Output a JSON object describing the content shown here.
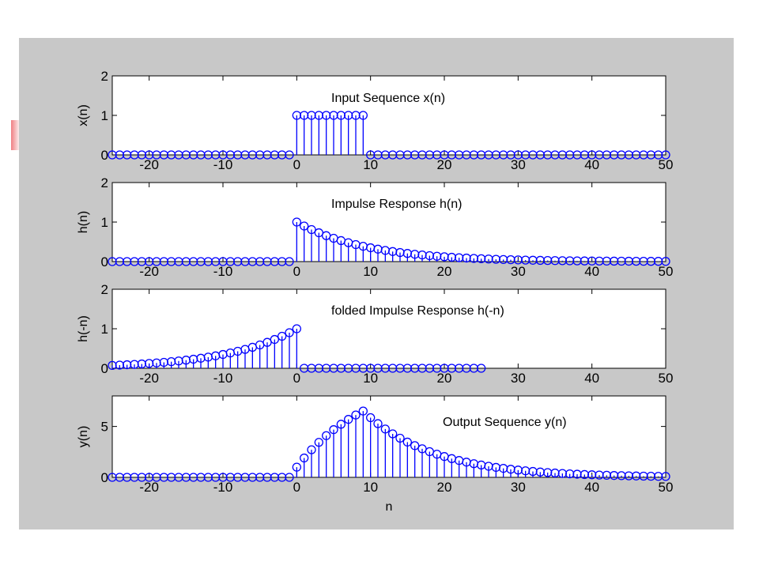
{
  "chart_data": [
    {
      "type": "stem",
      "title": "Input Sequence x(n)",
      "xlabel": "",
      "ylabel": "x(n)",
      "xlim": [
        -25,
        50
      ],
      "ylim": [
        0,
        2
      ],
      "xticks": [
        -20,
        -10,
        0,
        10,
        20,
        30,
        40,
        50
      ],
      "yticks": [
        0,
        1,
        2
      ],
      "x": [
        -25,
        -24,
        -23,
        -22,
        -21,
        -20,
        -19,
        -18,
        -17,
        -16,
        -15,
        -14,
        -13,
        -12,
        -11,
        -10,
        -9,
        -8,
        -7,
        -6,
        -5,
        -4,
        -3,
        -2,
        -1,
        0,
        1,
        2,
        3,
        4,
        5,
        6,
        7,
        8,
        9,
        10,
        11,
        12,
        13,
        14,
        15,
        16,
        17,
        18,
        19,
        20,
        21,
        22,
        23,
        24,
        25,
        26,
        27,
        28,
        29,
        30,
        31,
        32,
        33,
        34,
        35,
        36,
        37,
        38,
        39,
        40,
        41,
        42,
        43,
        44,
        45,
        46,
        47,
        48,
        49,
        50
      ],
      "y": [
        0,
        0,
        0,
        0,
        0,
        0,
        0,
        0,
        0,
        0,
        0,
        0,
        0,
        0,
        0,
        0,
        0,
        0,
        0,
        0,
        0,
        0,
        0,
        0,
        0,
        1,
        1,
        1,
        1,
        1,
        1,
        1,
        1,
        1,
        1,
        0,
        0,
        0,
        0,
        0,
        0,
        0,
        0,
        0,
        0,
        0,
        0,
        0,
        0,
        0,
        0,
        0,
        0,
        0,
        0,
        0,
        0,
        0,
        0,
        0,
        0,
        0,
        0,
        0,
        0,
        0,
        0,
        0,
        0,
        0,
        0,
        0,
        0,
        0,
        0,
        0
      ]
    },
    {
      "type": "stem",
      "title": "Impulse Response h(n)",
      "xlabel": "",
      "ylabel": "h(n)",
      "xlim": [
        -25,
        50
      ],
      "ylim": [
        0,
        2
      ],
      "xticks": [
        -20,
        -10,
        0,
        10,
        20,
        30,
        40,
        50
      ],
      "yticks": [
        0,
        1,
        2
      ],
      "x": [
        -25,
        -24,
        -23,
        -22,
        -21,
        -20,
        -19,
        -18,
        -17,
        -16,
        -15,
        -14,
        -13,
        -12,
        -11,
        -10,
        -9,
        -8,
        -7,
        -6,
        -5,
        -4,
        -3,
        -2,
        -1,
        0,
        1,
        2,
        3,
        4,
        5,
        6,
        7,
        8,
        9,
        10,
        11,
        12,
        13,
        14,
        15,
        16,
        17,
        18,
        19,
        20,
        21,
        22,
        23,
        24,
        25,
        26,
        27,
        28,
        29,
        30,
        31,
        32,
        33,
        34,
        35,
        36,
        37,
        38,
        39,
        40,
        41,
        42,
        43,
        44,
        45,
        46,
        47,
        48,
        49,
        50
      ],
      "y": [
        0,
        0,
        0,
        0,
        0,
        0,
        0,
        0,
        0,
        0,
        0,
        0,
        0,
        0,
        0,
        0,
        0,
        0,
        0,
        0,
        0,
        0,
        0,
        0,
        0,
        1,
        0.9,
        0.81,
        0.729,
        0.656,
        0.59,
        0.531,
        0.478,
        0.43,
        0.387,
        0.349,
        0.314,
        0.282,
        0.254,
        0.229,
        0.206,
        0.185,
        0.167,
        0.15,
        0.135,
        0.122,
        0.109,
        0.098,
        0.089,
        0.08,
        0.072,
        0.065,
        0.058,
        0.052,
        0.047,
        0.042,
        0.038,
        0.034,
        0.031,
        0.028,
        0.025,
        0.023,
        0.02,
        0.018,
        0.016,
        0.015,
        0.013,
        0.012,
        0.011,
        0.01,
        0.009,
        0.008,
        0.007,
        0.006,
        0.006,
        0.005
      ]
    },
    {
      "type": "stem",
      "title": "folded Impulse Response h(-n)",
      "xlabel": "",
      "ylabel": "h(-n)",
      "xlim": [
        -25,
        50
      ],
      "ylim": [
        0,
        2
      ],
      "xticks": [
        -20,
        -10,
        0,
        10,
        20,
        30,
        40,
        50
      ],
      "yticks": [
        0,
        1,
        2
      ],
      "x": [
        -25,
        -24,
        -23,
        -22,
        -21,
        -20,
        -19,
        -18,
        -17,
        -16,
        -15,
        -14,
        -13,
        -12,
        -11,
        -10,
        -9,
        -8,
        -7,
        -6,
        -5,
        -4,
        -3,
        -2,
        -1,
        0,
        1,
        2,
        3,
        4,
        5,
        6,
        7,
        8,
        9,
        10,
        11,
        12,
        13,
        14,
        15,
        16,
        17,
        18,
        19,
        20,
        21,
        22,
        23,
        24,
        25
      ],
      "y": [
        0.072,
        0.08,
        0.089,
        0.098,
        0.109,
        0.122,
        0.135,
        0.15,
        0.167,
        0.185,
        0.206,
        0.229,
        0.254,
        0.282,
        0.314,
        0.349,
        0.387,
        0.43,
        0.478,
        0.531,
        0.59,
        0.656,
        0.729,
        0.81,
        0.9,
        1,
        0,
        0,
        0,
        0,
        0,
        0,
        0,
        0,
        0,
        0,
        0,
        0,
        0,
        0,
        0,
        0,
        0,
        0,
        0,
        0,
        0,
        0,
        0,
        0,
        0
      ]
    },
    {
      "type": "stem",
      "title": "Output Sequence y(n)",
      "xlabel": "n",
      "ylabel": "y(n)",
      "xlim": [
        -25,
        50
      ],
      "ylim": [
        0,
        8
      ],
      "xticks": [
        -20,
        -10,
        0,
        10,
        20,
        30,
        40,
        50
      ],
      "yticks": [
        0,
        5
      ],
      "x": [
        -25,
        -24,
        -23,
        -22,
        -21,
        -20,
        -19,
        -18,
        -17,
        -16,
        -15,
        -14,
        -13,
        -12,
        -11,
        -10,
        -9,
        -8,
        -7,
        -6,
        -5,
        -4,
        -3,
        -2,
        -1,
        0,
        1,
        2,
        3,
        4,
        5,
        6,
        7,
        8,
        9,
        10,
        11,
        12,
        13,
        14,
        15,
        16,
        17,
        18,
        19,
        20,
        21,
        22,
        23,
        24,
        25,
        26,
        27,
        28,
        29,
        30,
        31,
        32,
        33,
        34,
        35,
        36,
        37,
        38,
        39,
        40,
        41,
        42,
        43,
        44,
        45,
        46,
        47,
        48,
        49,
        50
      ],
      "y": [
        0,
        0,
        0,
        0,
        0,
        0,
        0,
        0,
        0,
        0,
        0,
        0,
        0,
        0,
        0,
        0,
        0,
        0,
        0,
        0,
        0,
        0,
        0,
        0,
        0,
        1,
        1.9,
        2.71,
        3.439,
        4.095,
        4.686,
        5.217,
        5.695,
        6.126,
        6.513,
        5.862,
        5.276,
        4.748,
        4.273,
        3.846,
        3.461,
        3.115,
        2.804,
        2.523,
        2.271,
        2.044,
        1.839,
        1.655,
        1.49,
        1.341,
        1.207,
        1.086,
        0.977,
        0.88,
        0.792,
        0.713,
        0.641,
        0.577,
        0.519,
        0.468,
        0.421,
        0.379,
        0.341,
        0.307,
        0.276,
        0.248,
        0.224,
        0.201,
        0.181,
        0.163,
        0.147,
        0.132,
        0.119,
        0.107,
        0.096,
        0.087
      ]
    }
  ]
}
